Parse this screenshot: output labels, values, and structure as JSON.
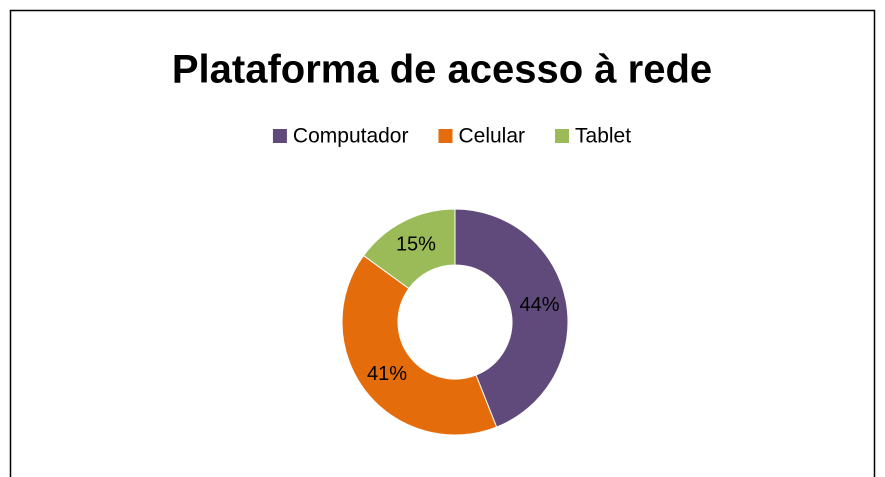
{
  "chart_data": {
    "type": "donut",
    "title": "Plataforma de acesso à rede",
    "categories": [
      "Computador",
      "Celular",
      "Tablet"
    ],
    "values": [
      44,
      41,
      15
    ],
    "value_labels": [
      "44%",
      "41%",
      "15%"
    ],
    "colors": [
      "#604a7b",
      "#e46c0a",
      "#9bbb59"
    ],
    "legend": "top"
  }
}
